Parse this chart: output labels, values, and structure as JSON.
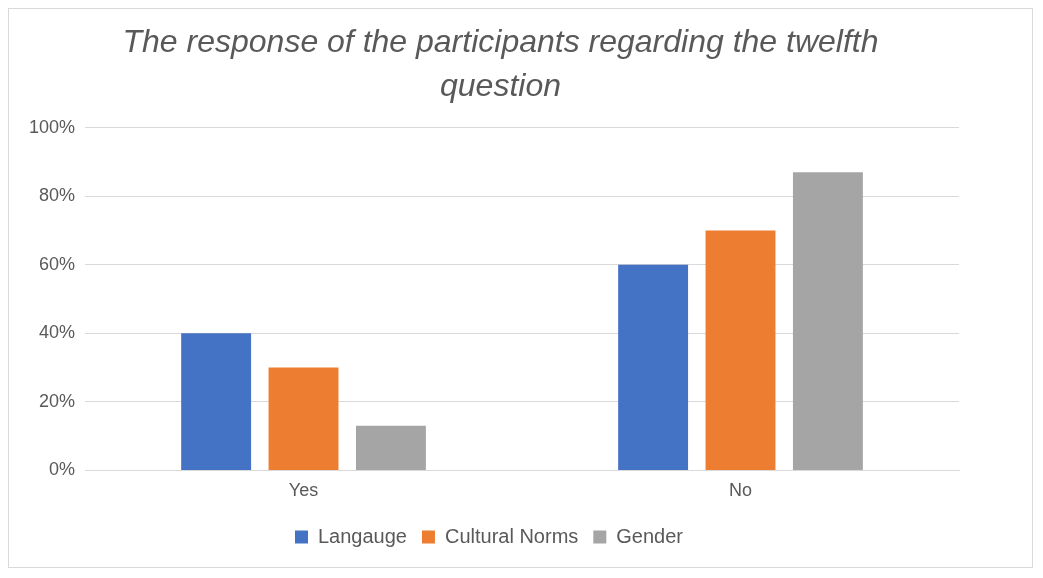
{
  "chart_data": {
    "type": "bar",
    "title": "The response of the participants regarding the twelfth question",
    "categories": [
      "Yes",
      "No"
    ],
    "series": [
      {
        "name": "Langauge",
        "color": "#4472c4",
        "values": [
          40,
          60
        ]
      },
      {
        "name": "Cultural Norms",
        "color": "#ed7d31",
        "values": [
          30,
          70
        ]
      },
      {
        "name": "Gender",
        "color": "#a5a5a5",
        "values": [
          13,
          87
        ]
      }
    ],
    "ylim": [
      0,
      100
    ],
    "yticks": [
      {
        "value": 0,
        "label": "0%"
      },
      {
        "value": 20,
        "label": "20%"
      },
      {
        "value": 40,
        "label": "40%"
      },
      {
        "value": 60,
        "label": "60%"
      },
      {
        "value": 80,
        "label": "80%"
      },
      {
        "value": 100,
        "label": "100%"
      }
    ],
    "grid": "y",
    "legend": "bottom"
  }
}
